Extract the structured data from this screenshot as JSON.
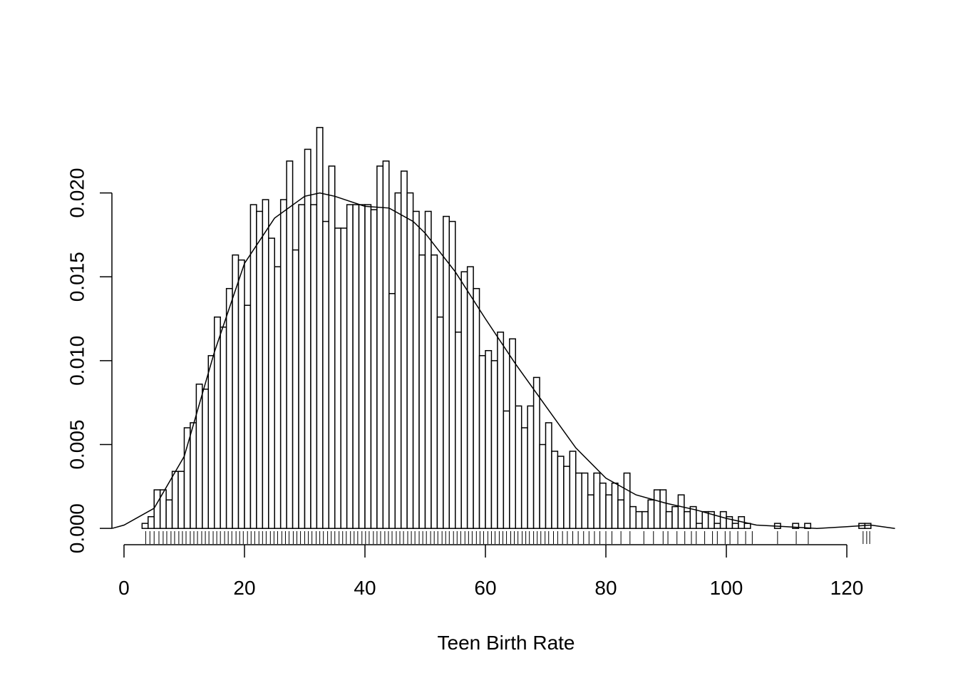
{
  "chart_data": {
    "type": "histogram",
    "xlabel": "Teen Birth Rate",
    "bins": [
      3,
      4,
      5,
      6,
      7,
      8,
      9,
      10,
      11,
      12,
      13,
      14,
      15,
      16,
      17,
      18,
      19,
      20,
      21,
      22,
      23,
      24,
      25,
      26,
      27,
      28,
      29,
      30,
      31,
      32,
      33,
      34,
      35,
      36,
      37,
      38,
      39,
      40,
      41,
      42,
      43,
      44,
      45,
      46,
      47,
      48,
      49,
      50,
      51,
      52,
      53,
      54,
      55,
      56,
      57,
      58,
      59,
      60,
      61,
      62,
      63,
      64,
      65,
      66,
      67,
      68,
      69,
      70,
      71,
      72,
      73,
      74,
      75,
      76,
      77,
      78,
      79,
      80,
      81,
      82,
      83,
      84,
      85,
      86,
      87,
      88,
      89,
      90,
      91,
      92,
      93,
      94,
      95,
      96,
      97,
      98,
      99,
      100,
      101,
      102,
      103,
      104,
      105,
      106,
      107,
      108,
      109,
      110,
      111,
      112,
      113,
      114,
      115,
      116,
      117,
      118,
      119,
      120,
      121,
      122,
      123,
      124
    ],
    "counts": [
      0.0003,
      0.0007,
      0.0023,
      0.0023,
      0.0017,
      0.0034,
      0.0034,
      0.006,
      0.0063,
      0.0086,
      0.0083,
      0.0103,
      0.0126,
      0.012,
      0.0143,
      0.0163,
      0.016,
      0.0133,
      0.0193,
      0.0189,
      0.0196,
      0.0173,
      0.0156,
      0.0196,
      0.0219,
      0.0166,
      0.0193,
      0.0226,
      0.0193,
      0.0239,
      0.0183,
      0.0216,
      0.0179,
      0.0179,
      0.0193,
      0.0193,
      0.0193,
      0.0193,
      0.019,
      0.0216,
      0.0219,
      0.014,
      0.02,
      0.0213,
      0.02,
      0.0189,
      0.0163,
      0.0189,
      0.0163,
      0.0126,
      0.0186,
      0.0183,
      0.0117,
      0.0153,
      0.0156,
      0.0143,
      0.0103,
      0.0106,
      0.01,
      0.0117,
      0.007,
      0.0113,
      0.0073,
      0.006,
      0.0073,
      0.009,
      0.005,
      0.0063,
      0.0046,
      0.0043,
      0.0037,
      0.0046,
      0.0033,
      0.0033,
      0.002,
      0.0033,
      0.0027,
      0.002,
      0.0027,
      0.0017,
      0.0033,
      0.0013,
      0.001,
      0.001,
      0.0017,
      0.0023,
      0.0023,
      0.001,
      0.0013,
      0.002,
      0.001,
      0.0013,
      0.0003,
      0.001,
      0.001,
      0.0003,
      0.001,
      0.0007,
      0.0003,
      0.0007,
      0.0003,
      0,
      0,
      0,
      0,
      0.0003,
      0,
      0,
      0.0003,
      0,
      0.0003,
      0,
      0,
      0,
      0,
      0,
      0,
      0,
      0,
      0.0003,
      0.0003
    ],
    "density": {
      "x": [
        -2,
        0,
        5,
        10,
        15,
        20,
        25,
        30,
        32.5,
        35,
        40,
        44,
        48,
        50,
        55,
        60,
        65,
        70,
        75,
        80,
        85,
        90,
        95,
        100,
        105,
        110,
        115,
        120,
        124,
        128
      ],
      "y": [
        0,
        0.0002,
        0.0012,
        0.0043,
        0.0105,
        0.0158,
        0.0185,
        0.0198,
        0.02,
        0.0198,
        0.0192,
        0.0191,
        0.0183,
        0.0176,
        0.0153,
        0.0125,
        0.0098,
        0.0073,
        0.0048,
        0.003,
        0.002,
        0.0015,
        0.0011,
        0.0006,
        0.0002,
        0.0001,
        0,
        0.0001,
        0.0002,
        0
      ]
    },
    "rug": [
      3.6,
      4.3,
      5.0,
      5.8,
      6.5,
      7.1,
      7.8,
      8.4,
      9.1,
      9.7,
      10.3,
      11.0,
      11.6,
      12.2,
      12.9,
      13.5,
      14.1,
      14.8,
      15.4,
      16.0,
      16.7,
      17.3,
      17.9,
      18.6,
      19.2,
      19.8,
      20.5,
      21.1,
      21.7,
      22.4,
      23.0,
      23.6,
      24.3,
      24.9,
      25.5,
      26.2,
      26.8,
      27.4,
      28.1,
      28.7,
      29.3,
      30.0,
      30.6,
      31.2,
      31.9,
      32.5,
      33.1,
      33.8,
      34.4,
      35.0,
      35.7,
      36.3,
      36.9,
      37.6,
      38.2,
      38.8,
      39.5,
      40.1,
      40.7,
      41.4,
      42.0,
      42.6,
      43.3,
      43.9,
      44.5,
      45.2,
      45.8,
      46.4,
      47.1,
      47.7,
      48.3,
      49.0,
      49.6,
      50.2,
      50.9,
      51.5,
      52.1,
      52.8,
      53.4,
      54.0,
      54.7,
      55.3,
      55.9,
      56.6,
      57.2,
      57.8,
      58.5,
      59.1,
      59.7,
      60.4,
      61.0,
      61.6,
      62.3,
      62.9,
      63.5,
      64.2,
      64.8,
      65.4,
      66.1,
      66.7,
      67.3,
      68.0,
      68.6,
      69.2,
      69.9,
      70.5,
      71.3,
      72.0,
      72.8,
      73.6,
      74.5,
      75.4,
      76.3,
      77.2,
      78.1,
      79.0,
      80.0,
      81.0,
      82.5,
      84.0,
      86.3,
      87.9,
      89.5,
      90.3,
      91.8,
      93.1,
      94.2,
      95.0,
      96.4,
      97.7,
      98.5,
      99.8,
      100.6,
      101.9,
      103.2,
      104.3,
      108.5,
      111.6,
      113.6,
      122.7,
      123.3,
      123.8
    ],
    "xlim": [
      -4.02,
      133.25
    ],
    "ylim": [
      -0.0008,
      0.0247
    ],
    "xticks": [
      0,
      20,
      40,
      60,
      80,
      100,
      120
    ],
    "yticks": [
      {
        "value": 0,
        "label": "0.000"
      },
      {
        "value": 0.005,
        "label": "0.005"
      },
      {
        "value": 0.01,
        "label": "0.010"
      },
      {
        "value": 0.015,
        "label": "0.015"
      },
      {
        "value": 0.02,
        "label": "0.020"
      }
    ]
  }
}
